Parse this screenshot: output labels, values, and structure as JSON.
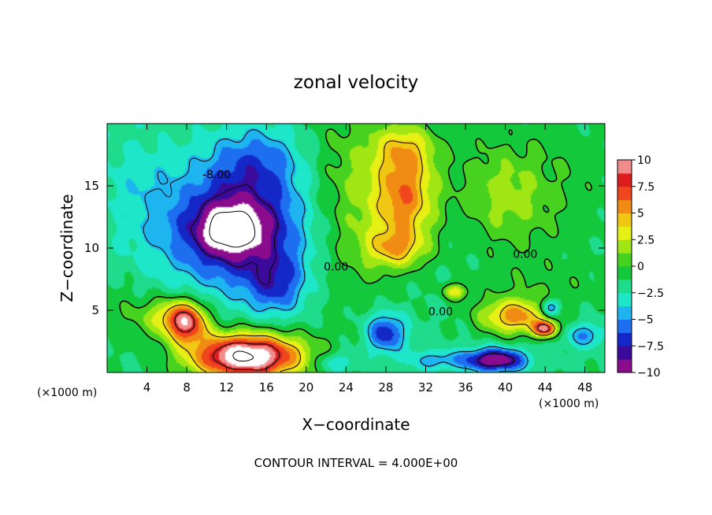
{
  "chart_data": {
    "type": "heatmap",
    "title": "zonal velocity",
    "xlabel": "X−coordinate",
    "ylabel": "Z−coordinate",
    "x_unit_label": "(×1000 m)",
    "footer": "CONTOUR INTERVAL = 4.000E+00",
    "xlim": [
      0,
      50
    ],
    "ylim": [
      0,
      20
    ],
    "x_ticks": [
      "4",
      "8",
      "12",
      "16",
      "20",
      "24",
      "28",
      "32",
      "36",
      "40",
      "44",
      "48"
    ],
    "y_ticks": [
      "5",
      "10",
      "15"
    ],
    "contour_interval": 4.0,
    "contour_labels": [
      {
        "text": "-8.00",
        "x": 11,
        "z": 15.6
      },
      {
        "text": "0.00",
        "x": 23,
        "z": 8.2
      },
      {
        "text": "0.00",
        "x": 33.5,
        "z": 4.6
      },
      {
        "text": "0.00",
        "x": 42,
        "z": 9.2
      }
    ],
    "colorbar": {
      "range": [
        -10,
        10
      ],
      "ticks": [
        "10",
        "7.5",
        "5",
        "2.5",
        "0",
        "−2.5",
        "−5",
        "−7.5",
        "−10"
      ],
      "colors": [
        "#8a0c8c",
        "#3c0a9a",
        "#1428c8",
        "#1e6ef0",
        "#1eb4f0",
        "#1ee6c8",
        "#1edc8c",
        "#14c83c",
        "#46d21e",
        "#a0e614",
        "#e6f014",
        "#f0c814",
        "#f08c14",
        "#f0461e",
        "#dc1e1e",
        "#f08c8c"
      ]
    },
    "field": {
      "background": -1.5,
      "blobs": [
        {
          "x": 13,
          "z": 11.5,
          "sx": 7,
          "sz": 4.5,
          "v": -8
        },
        {
          "x": 12.5,
          "z": 11.5,
          "sx": 3,
          "sz": 1.8,
          "v": -6
        },
        {
          "x": 15,
          "z": 17,
          "sx": 5,
          "sz": 3,
          "v": -3.5
        },
        {
          "x": 17,
          "z": 7,
          "sx": 3,
          "sz": 2.5,
          "v": -4
        },
        {
          "x": 14,
          "z": 1.3,
          "sx": 5.5,
          "sz": 1.8,
          "v": 14
        },
        {
          "x": 8,
          "z": 4,
          "sx": 2,
          "sz": 1.6,
          "v": 9
        },
        {
          "x": 6,
          "z": 4.5,
          "sx": 3,
          "sz": 1.5,
          "v": 4
        },
        {
          "x": 30,
          "z": 14,
          "sx": 3,
          "sz": 3.5,
          "v": 6.5
        },
        {
          "x": 29,
          "z": 10,
          "sx": 3,
          "sz": 1.5,
          "v": 4.5
        },
        {
          "x": 30,
          "z": 18,
          "sx": 3,
          "sz": 2,
          "v": 4
        },
        {
          "x": 25,
          "z": 14,
          "sx": 5,
          "sz": 8,
          "v": 3
        },
        {
          "x": 41,
          "z": 4.5,
          "sx": 3.5,
          "sz": 1.4,
          "v": 7
        },
        {
          "x": 44,
          "z": 3.5,
          "sx": 1.2,
          "sz": 0.6,
          "v": 9
        },
        {
          "x": 39,
          "z": 1.0,
          "sx": 3,
          "sz": 0.9,
          "v": -9
        },
        {
          "x": 28,
          "z": 3.2,
          "sx": 2,
          "sz": 1.6,
          "v": -6
        },
        {
          "x": 45,
          "z": 15,
          "sx": 7,
          "sz": 6,
          "v": 1.2
        },
        {
          "x": 44,
          "z": 7,
          "sx": 7,
          "sz": 2,
          "v": 1
        },
        {
          "x": 1,
          "z": 5,
          "sx": 3,
          "sz": 3,
          "v": 1
        },
        {
          "x": 3,
          "z": 15,
          "sx": 4,
          "sz": 5,
          "v": -1.5
        },
        {
          "x": 40,
          "z": 14,
          "sx": 4,
          "sz": 4,
          "v": 2.5
        },
        {
          "x": 35,
          "z": 6.5,
          "sx": 1.2,
          "sz": 0.6,
          "v": 4.5
        },
        {
          "x": 44.5,
          "z": 5.2,
          "sx": 1,
          "sz": 0.7,
          "v": -5.5
        },
        {
          "x": 48,
          "z": 3,
          "sx": 2,
          "sz": 1,
          "v": -3.5
        },
        {
          "x": 33,
          "z": 1,
          "sx": 3,
          "sz": 0.8,
          "v": -3
        },
        {
          "x": 23,
          "z": 0.8,
          "sx": 2,
          "sz": 0.8,
          "v": -3
        },
        {
          "x": 36,
          "z": 16,
          "sx": 5,
          "sz": 4,
          "v": 0.5
        }
      ]
    }
  }
}
